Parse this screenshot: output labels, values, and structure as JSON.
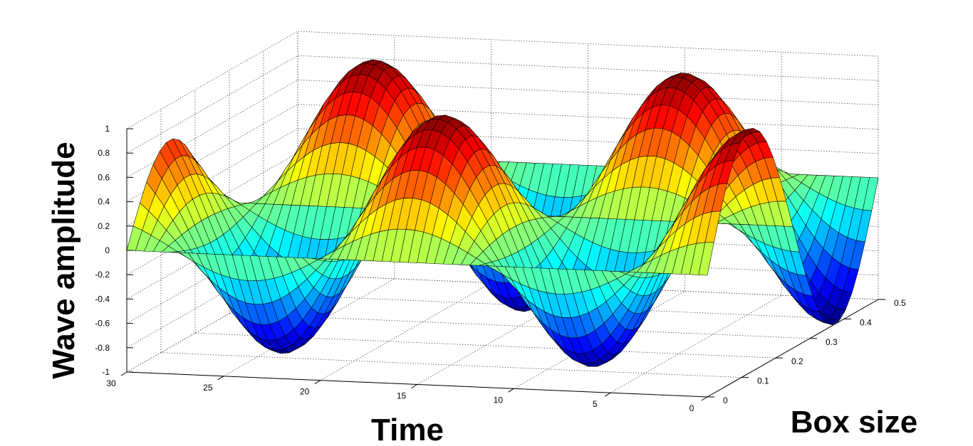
{
  "chart_data": {
    "type": "surface",
    "title": "",
    "xlabel": "Time",
    "ylabel": "Box size",
    "zlabel": "Wave amplitude",
    "xlim": [
      0,
      30
    ],
    "ylim": [
      0,
      0.5
    ],
    "zlim": [
      -1,
      1
    ],
    "x_ticks": [
      "0",
      "5",
      "10",
      "15",
      "20",
      "25",
      "30"
    ],
    "y_ticks": [
      "0",
      "0.1",
      "0.2",
      "0.3",
      "0.4",
      "0.5"
    ],
    "z_ticks": [
      "-1",
      "-0.8",
      "-0.6",
      "-0.4",
      "-0.2",
      "0",
      "0.2",
      "0.4",
      "0.6",
      "0.8",
      "1"
    ],
    "grid": true,
    "colormap": "jet",
    "surface": {
      "function": "z = sin(2*pi*y/0.5) * cos(2*pi*t/16)",
      "t_range": [
        0,
        30
      ],
      "y_range": [
        0,
        0.5
      ]
    }
  }
}
